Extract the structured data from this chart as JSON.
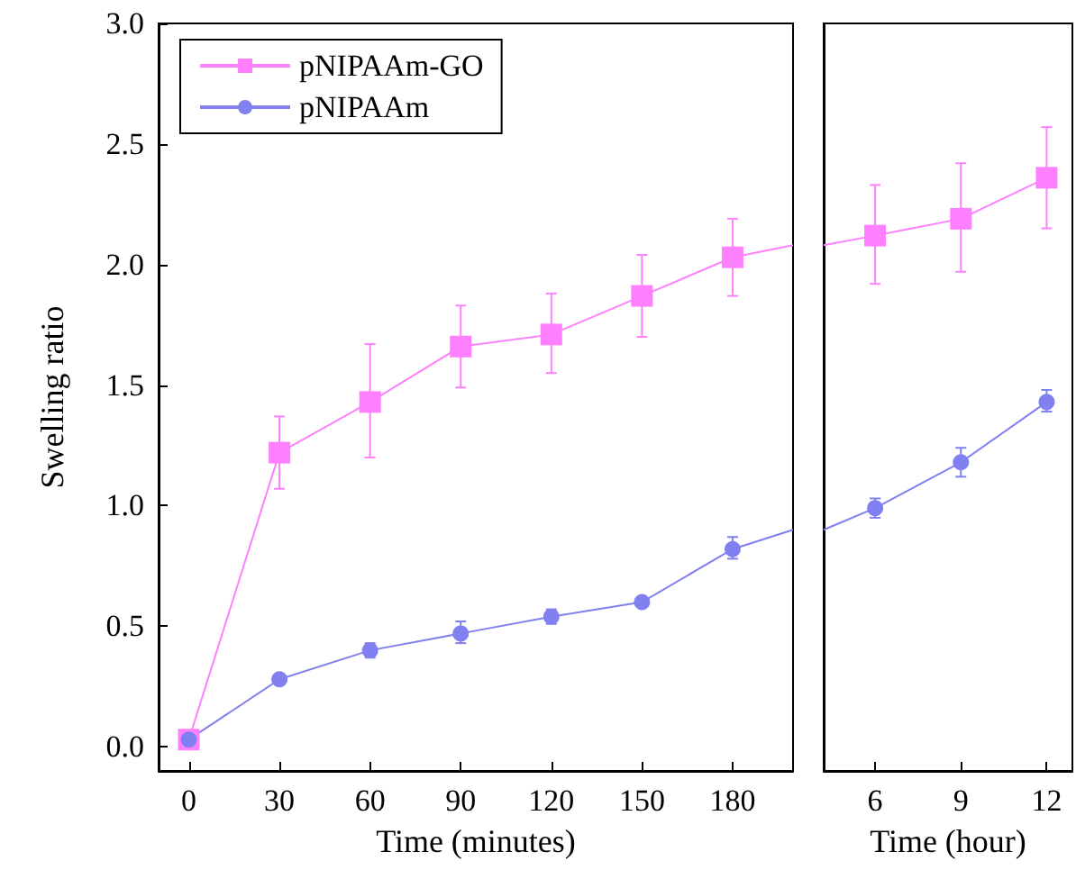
{
  "chart_data": [
    {
      "type": "line",
      "xlabel": "Time (minutes)",
      "ylabel": "Swelling ratio",
      "xlim": [
        -10,
        200
      ],
      "xticks": [
        0,
        30,
        60,
        90,
        120,
        150,
        180
      ],
      "ylim": [
        -0.1,
        3.0
      ],
      "yticks": [
        {
          "value": 0,
          "label": "0.0"
        },
        {
          "value": 0.5,
          "label": "0.5"
        },
        {
          "value": 1,
          "label": "1.0"
        },
        {
          "value": 1.5,
          "label": "1.5"
        },
        {
          "value": 2,
          "label": "2.0"
        },
        {
          "value": 2.5,
          "label": "2.5"
        },
        {
          "value": 3,
          "label": "3.0"
        }
      ],
      "legend": "top left",
      "grid": false,
      "series": [
        {
          "name": "pNIPAAm-GO",
          "color": "#ff80ff",
          "marker": "square",
          "x": [
            0,
            30,
            60,
            90,
            120,
            150,
            180
          ],
          "values": [
            0.03,
            1.22,
            1.43,
            1.66,
            1.71,
            1.87,
            2.03
          ],
          "errors": [
            null,
            [
              1.07,
              1.37
            ],
            [
              1.2,
              1.67
            ],
            [
              1.49,
              1.83
            ],
            [
              1.55,
              1.88
            ],
            [
              1.7,
              2.04
            ],
            [
              1.87,
              2.19
            ]
          ]
        },
        {
          "name": "pNIPAAm",
          "color": "#8080f0",
          "marker": "circle",
          "x": [
            0,
            30,
            60,
            90,
            120,
            150,
            180
          ],
          "values": [
            0.03,
            0.28,
            0.4,
            0.47,
            0.54,
            0.6,
            0.82
          ],
          "errors": [
            null,
            null,
            [
              0.37,
              0.43
            ],
            [
              0.43,
              0.52
            ],
            [
              0.51,
              0.57
            ],
            [
              0.58,
              0.62
            ],
            [
              0.78,
              0.87
            ]
          ]
        },
        {
          "color": "#ff80ff",
          "marker": "none",
          "x": [
            180,
            200
          ],
          "values": [
            2.03,
            2.08
          ]
        },
        {
          "color": "#8080f0",
          "marker": "none",
          "x": [
            180,
            200
          ],
          "values": [
            0.82,
            0.9
          ]
        }
      ]
    },
    {
      "type": "line",
      "xlabel": "Time (hour)",
      "xlim": [
        4.2,
        12.9
      ],
      "xticks": [
        6,
        9,
        12
      ],
      "ylim": [
        -0.1,
        3.0
      ],
      "tick_labels": "x",
      "grid": false,
      "series": [
        {
          "color": "#ff80ff",
          "marker": "square",
          "x": [
            6,
            9,
            12
          ],
          "values": [
            2.12,
            2.19,
            2.36
          ],
          "errors": [
            [
              1.92,
              2.33
            ],
            [
              1.97,
              2.42
            ],
            [
              2.15,
              2.57
            ]
          ]
        },
        {
          "color": "#8080f0",
          "marker": "circle",
          "x": [
            6,
            9,
            12
          ],
          "values": [
            0.99,
            1.18,
            1.43
          ],
          "errors": [
            [
              0.95,
              1.03
            ],
            [
              1.12,
              1.24
            ],
            [
              1.39,
              1.48
            ]
          ]
        },
        {
          "color": "#ff80ff",
          "marker": "none",
          "x": [
            4.2,
            6
          ],
          "values": [
            2.08,
            2.12
          ]
        },
        {
          "color": "#8080f0",
          "marker": "none",
          "x": [
            4.2,
            6
          ],
          "values": [
            0.9,
            0.99
          ]
        }
      ]
    }
  ]
}
